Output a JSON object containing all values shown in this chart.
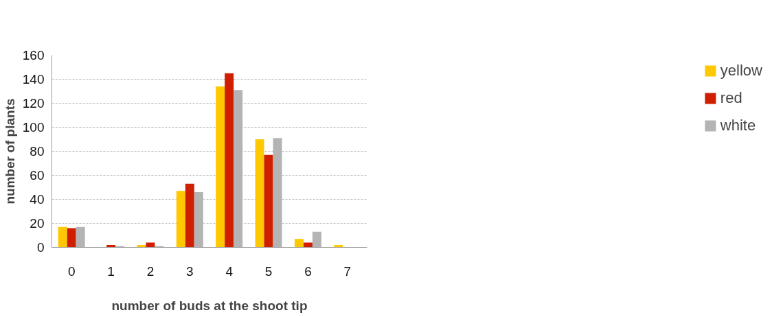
{
  "chart_data": {
    "type": "bar",
    "xlabel": "number of buds at the shoot tip",
    "ylabel": "number of plants",
    "categories": [
      "0",
      "1",
      "2",
      "3",
      "4",
      "5",
      "6",
      "7"
    ],
    "series": [
      {
        "name": "yellow",
        "color": "#ffc800",
        "values": [
          17,
          0,
          2,
          47,
          134,
          90,
          7,
          2
        ]
      },
      {
        "name": "red",
        "color": "#d01f00",
        "values": [
          16,
          2,
          4,
          53,
          145,
          77,
          4,
          0
        ]
      },
      {
        "name": "white",
        "color": "#b4b4b4",
        "values": [
          17,
          1,
          1,
          46,
          131,
          91,
          13,
          0
        ]
      }
    ],
    "ylim": [
      0,
      160
    ],
    "yticks": [
      0,
      20,
      40,
      60,
      80,
      100,
      120,
      140,
      160
    ],
    "grid": "y",
    "legend": "right"
  }
}
